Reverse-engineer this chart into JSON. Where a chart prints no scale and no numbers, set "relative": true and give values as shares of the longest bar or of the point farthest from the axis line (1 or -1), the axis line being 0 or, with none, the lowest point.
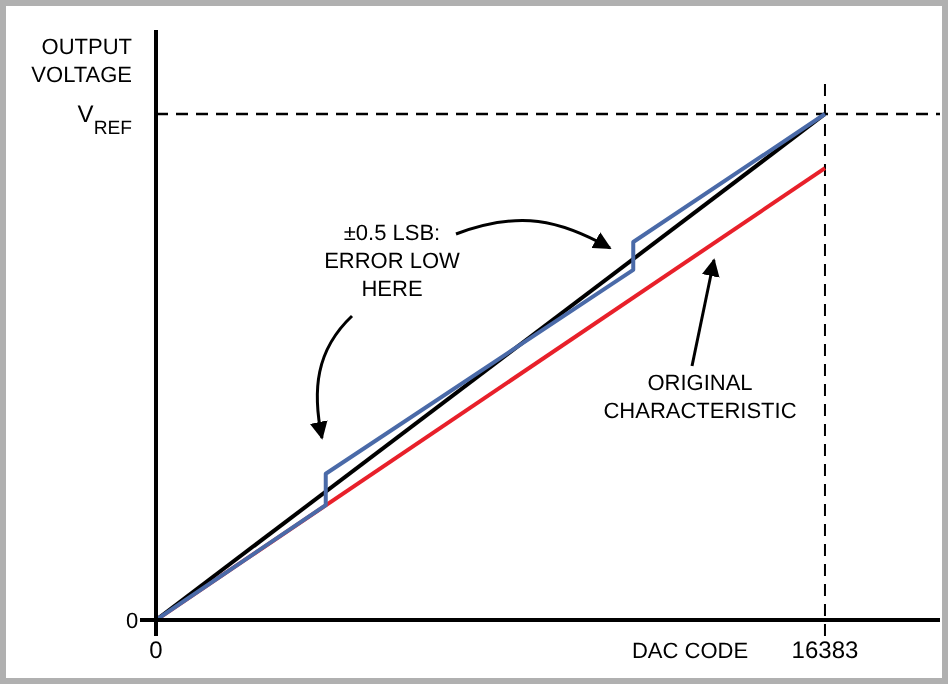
{
  "chart_data": {
    "type": "line",
    "relative": true,
    "ylabel": "OUTPUT\nVOLTAGE",
    "xlabel": "DAC CODE",
    "xlim": [
      0,
      19200
    ],
    "xticks": [
      0,
      16383
    ],
    "ref_lines": [
      {
        "axis": "y",
        "value": 1,
        "label": "V$_{REF}$",
        "line_style": "dashed",
        "color": "#000000"
      },
      {
        "axis": "x",
        "value": 16383,
        "line_style": "dashed",
        "color": "#000000"
      }
    ],
    "series": [
      {
        "color": "#e8202a",
        "x": [
          0,
          16383
        ],
        "values": [
          0,
          0.893
        ]
      },
      {
        "color": "#000000",
        "x": [
          0,
          16383
        ],
        "values": [
          0,
          1
        ]
      },
      {
        "color": "#4a6aa8",
        "x": [
          0,
          4157,
          4157,
          11688,
          11688,
          16383
        ],
        "values": [
          0,
          0.227,
          0.289,
          0.692,
          0.747,
          1
        ]
      }
    ],
    "annotations": [
      "0",
      "±0.5 LSB:\nERROR LOW\nHERE",
      "ORIGINAL\nCHARACTERISTIC"
    ],
    "grid": false,
    "marker": "none",
    "line_style": "solid"
  }
}
